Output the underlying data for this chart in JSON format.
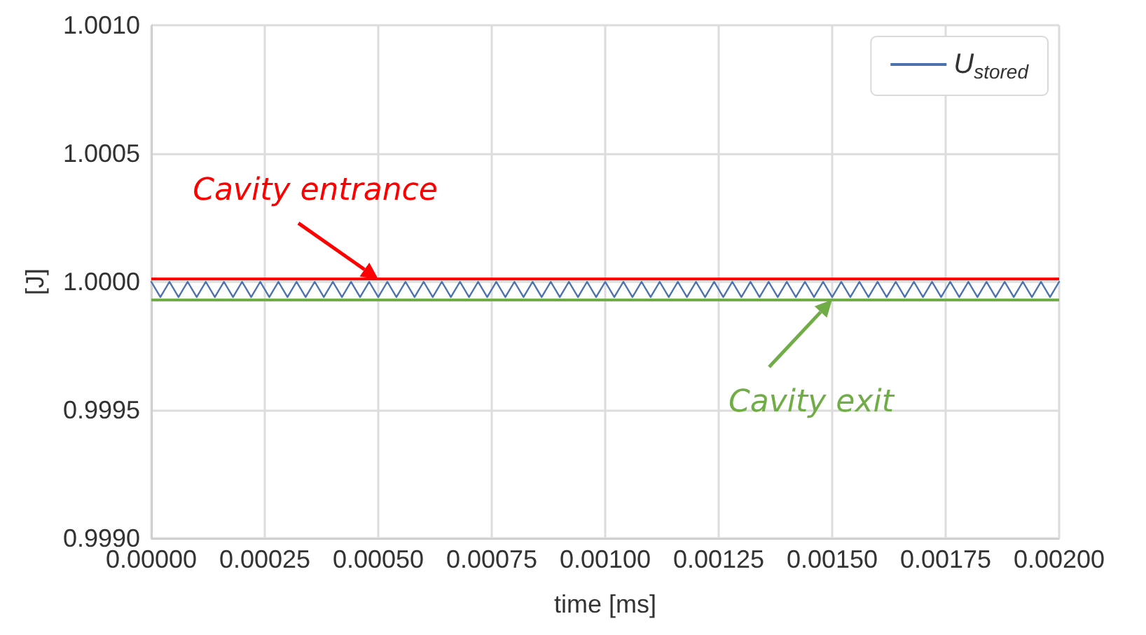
{
  "chart_data": {
    "type": "line",
    "xlabel": "time [ms]",
    "ylabel": "[J]",
    "xlim": [
      0,
      0.002
    ],
    "ylim": [
      0.999,
      1.001
    ],
    "xticks": [
      {
        "value": 0,
        "label": "0.00000"
      },
      {
        "value": 0.00025,
        "label": "0.00025"
      },
      {
        "value": 0.0005,
        "label": "0.00050"
      },
      {
        "value": 0.00075,
        "label": "0.00075"
      },
      {
        "value": 0.001,
        "label": "0.00100"
      },
      {
        "value": 0.00125,
        "label": "0.00125"
      },
      {
        "value": 0.0015,
        "label": "0.00150"
      },
      {
        "value": 0.00175,
        "label": "0.00175"
      },
      {
        "value": 0.002,
        "label": "0.00200"
      }
    ],
    "yticks": [
      {
        "value": 0.999,
        "label": "0.9990"
      },
      {
        "value": 0.9995,
        "label": "0.9995"
      },
      {
        "value": 1,
        "label": "1.0000"
      },
      {
        "value": 1.0005,
        "label": "1.0005"
      },
      {
        "value": 1.001,
        "label": "1.0010"
      }
    ],
    "x": [
      0,
      2e-05,
      4e-05,
      6e-05,
      8e-05,
      0.0001,
      0.00012,
      0.00014,
      0.00016,
      0.00018,
      0.0002,
      0.00022,
      0.00024,
      0.00026,
      0.00028,
      0.0003,
      0.00032,
      0.00034,
      0.00036,
      0.00038,
      0.0004,
      0.00042,
      0.00044,
      0.00046,
      0.00048,
      0.0005,
      0.00052,
      0.00054,
      0.00056,
      0.00058,
      0.0006,
      0.00062,
      0.00064,
      0.00066,
      0.00068,
      0.0007,
      0.00072,
      0.00074,
      0.00076,
      0.00078,
      0.0008,
      0.00082,
      0.00084,
      0.00086,
      0.00088,
      0.0009,
      0.00092,
      0.00094,
      0.00096,
      0.00098,
      0.001,
      0.00102,
      0.00104,
      0.00106,
      0.00108,
      0.0011,
      0.00112,
      0.00114,
      0.00116,
      0.00118,
      0.0012,
      0.00122,
      0.00124,
      0.00126,
      0.00128,
      0.0013,
      0.00132,
      0.00134,
      0.00136,
      0.00138,
      0.0014,
      0.00142,
      0.00144,
      0.00146,
      0.00148,
      0.0015,
      0.00152,
      0.00154,
      0.00156,
      0.00158,
      0.0016,
      0.00162,
      0.00164,
      0.00166,
      0.00168,
      0.0017,
      0.00172,
      0.00174,
      0.00176,
      0.00178,
      0.0018,
      0.00182,
      0.00184,
      0.00186,
      0.00188,
      0.0019,
      0.00192,
      0.00194,
      0.00196,
      0.00198,
      0.002
    ],
    "series": [
      {
        "name": "U$_{stored}$",
        "color": "#4c72b0",
        "values": [
          1.0,
          0.99994,
          1.0,
          0.99994,
          1.0,
          0.99994,
          1.0,
          0.99994,
          1.0,
          0.99994,
          1.0,
          0.99994,
          1.0,
          0.99994,
          1.0,
          0.99994,
          1.0,
          0.99994,
          1.0,
          0.99994,
          1.0,
          0.99994,
          1.0,
          0.99994,
          1.0,
          0.99994,
          1.0,
          0.99994,
          1.0,
          0.99994,
          1.0,
          0.99994,
          1.0,
          0.99994,
          1.0,
          0.99994,
          1.0,
          0.99994,
          1.0,
          0.99994,
          1.0,
          0.99994,
          1.0,
          0.99994,
          1.0,
          0.99994,
          1.0,
          0.99994,
          1.0,
          0.99994,
          1.0,
          0.99994,
          1.0,
          0.99994,
          1.0,
          0.99994,
          1.0,
          0.99994,
          1.0,
          0.99994,
          1.0,
          0.99994,
          1.0,
          0.99994,
          1.0,
          0.99994,
          1.0,
          0.99994,
          1.0,
          0.99994,
          1.0,
          0.99994,
          1.0,
          0.99994,
          1.0,
          0.99994,
          1.0,
          0.99994,
          1.0,
          0.99994,
          1.0,
          0.99994,
          1.0,
          0.99994,
          1.0,
          0.99994,
          1.0,
          0.99994,
          1.0,
          0.99994,
          1.0,
          0.99994,
          1.0,
          0.99994,
          1.0,
          0.99994,
          1.0,
          0.99994,
          1.0,
          0.99994,
          1.0
        ]
      }
    ],
    "ref_lines": [
      {
        "axis": "y",
        "value": 1.00001,
        "color": "#ff0000"
      },
      {
        "axis": "y",
        "value": 0.99993,
        "color": "#70ad47"
      }
    ],
    "annotations": [
      {
        "text": "Cavity entrance",
        "x": 0.0005,
        "y": 1.00001
      },
      {
        "text": "Cavity exit",
        "x": 0.0015,
        "y": 0.99993
      }
    ],
    "grid": true,
    "legend": "top right",
    "marker": "none",
    "line_style": "solid"
  }
}
